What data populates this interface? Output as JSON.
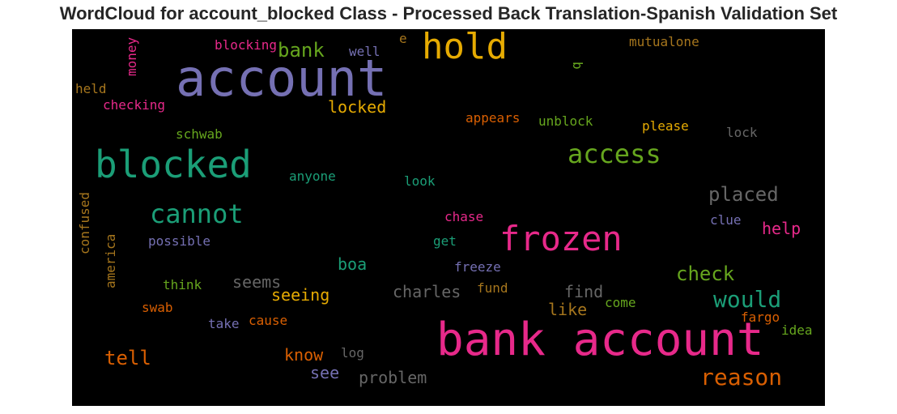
{
  "title": "WordCloud for account_blocked Class - Processed Back Translation-Spanish Validation Set",
  "colors": {
    "purple": "#7570b3",
    "green": "#1b9e77",
    "orange": "#d95f02",
    "pink": "#e7298a",
    "lime": "#66a61e",
    "gold": "#e6ab02",
    "brown": "#a6761d",
    "gray": "#666666"
  },
  "words": {
    "account": "account",
    "bank_account": "bank account",
    "hold": "hold",
    "blocked": "blocked",
    "frozen": "frozen",
    "access": "access",
    "cannot": "cannot",
    "would": "would",
    "reason": "reason",
    "check": "check",
    "placed": "placed",
    "bank": "bank",
    "tell": "tell",
    "seeing": "seeing",
    "charles": "charles",
    "find": "find",
    "help": "help",
    "like": "like",
    "boa": "boa",
    "problem": "problem",
    "seems": "seems",
    "know": "know",
    "see": "see",
    "locked": "locked",
    "blocking": "blocking",
    "well": "well",
    "mutualone": "mutualone",
    "e": "e",
    "b": "b",
    "money": "money",
    "held": "held",
    "checking": "checking",
    "appears": "appears",
    "unblock": "unblock",
    "please": "please",
    "lock": "lock",
    "schwab": "schwab",
    "anyone": "anyone",
    "look": "look",
    "confused": "confused",
    "chase": "chase",
    "clue": "clue",
    "possible": "possible",
    "get": "get",
    "america": "america",
    "freeze": "freeze",
    "think": "think",
    "fund": "fund",
    "swab": "swab",
    "come": "come",
    "fargo": "fargo",
    "take": "take",
    "cause": "cause",
    "idea": "idea",
    "log": "log"
  }
}
